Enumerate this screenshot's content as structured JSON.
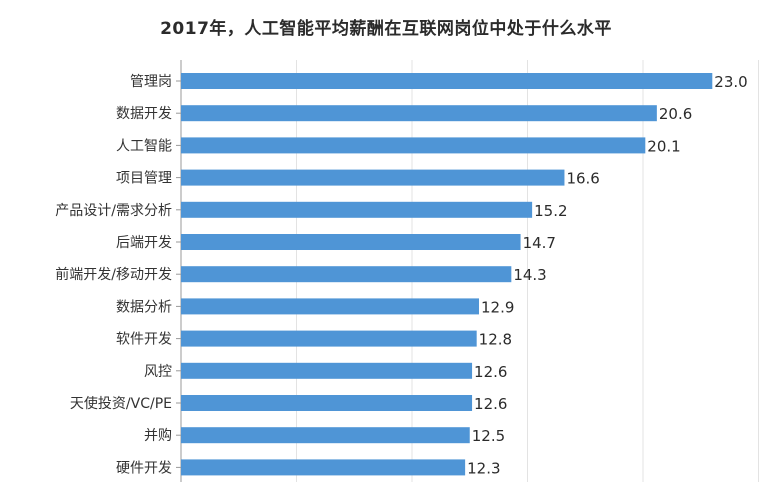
{
  "chart_data": {
    "type": "bar",
    "orientation": "horizontal",
    "title": "2017年，人工智能平均薪酬在互联网岗位中处于什么水平",
    "categories": [
      "管理岗",
      "数据开发",
      "人工智能",
      "项目管理",
      "产品设计/需求分析",
      "后端开发",
      "前端开发/移动开发",
      "数据分析",
      "软件开发",
      "风控",
      "天使投资/VC/PE",
      "并购",
      "硬件开发"
    ],
    "values": [
      23.0,
      20.6,
      20.1,
      16.6,
      15.2,
      14.7,
      14.3,
      12.9,
      12.8,
      12.6,
      12.6,
      12.5,
      12.3
    ],
    "value_labels": [
      "23.0",
      "20.6",
      "20.1",
      "16.6",
      "15.2",
      "14.7",
      "14.3",
      "12.9",
      "12.8",
      "12.6",
      "12.6",
      "12.5",
      "12.3"
    ],
    "xlim": [
      0,
      25
    ],
    "grid": true,
    "bar_color": "#4f95d6",
    "xlabel": "",
    "ylabel": ""
  }
}
